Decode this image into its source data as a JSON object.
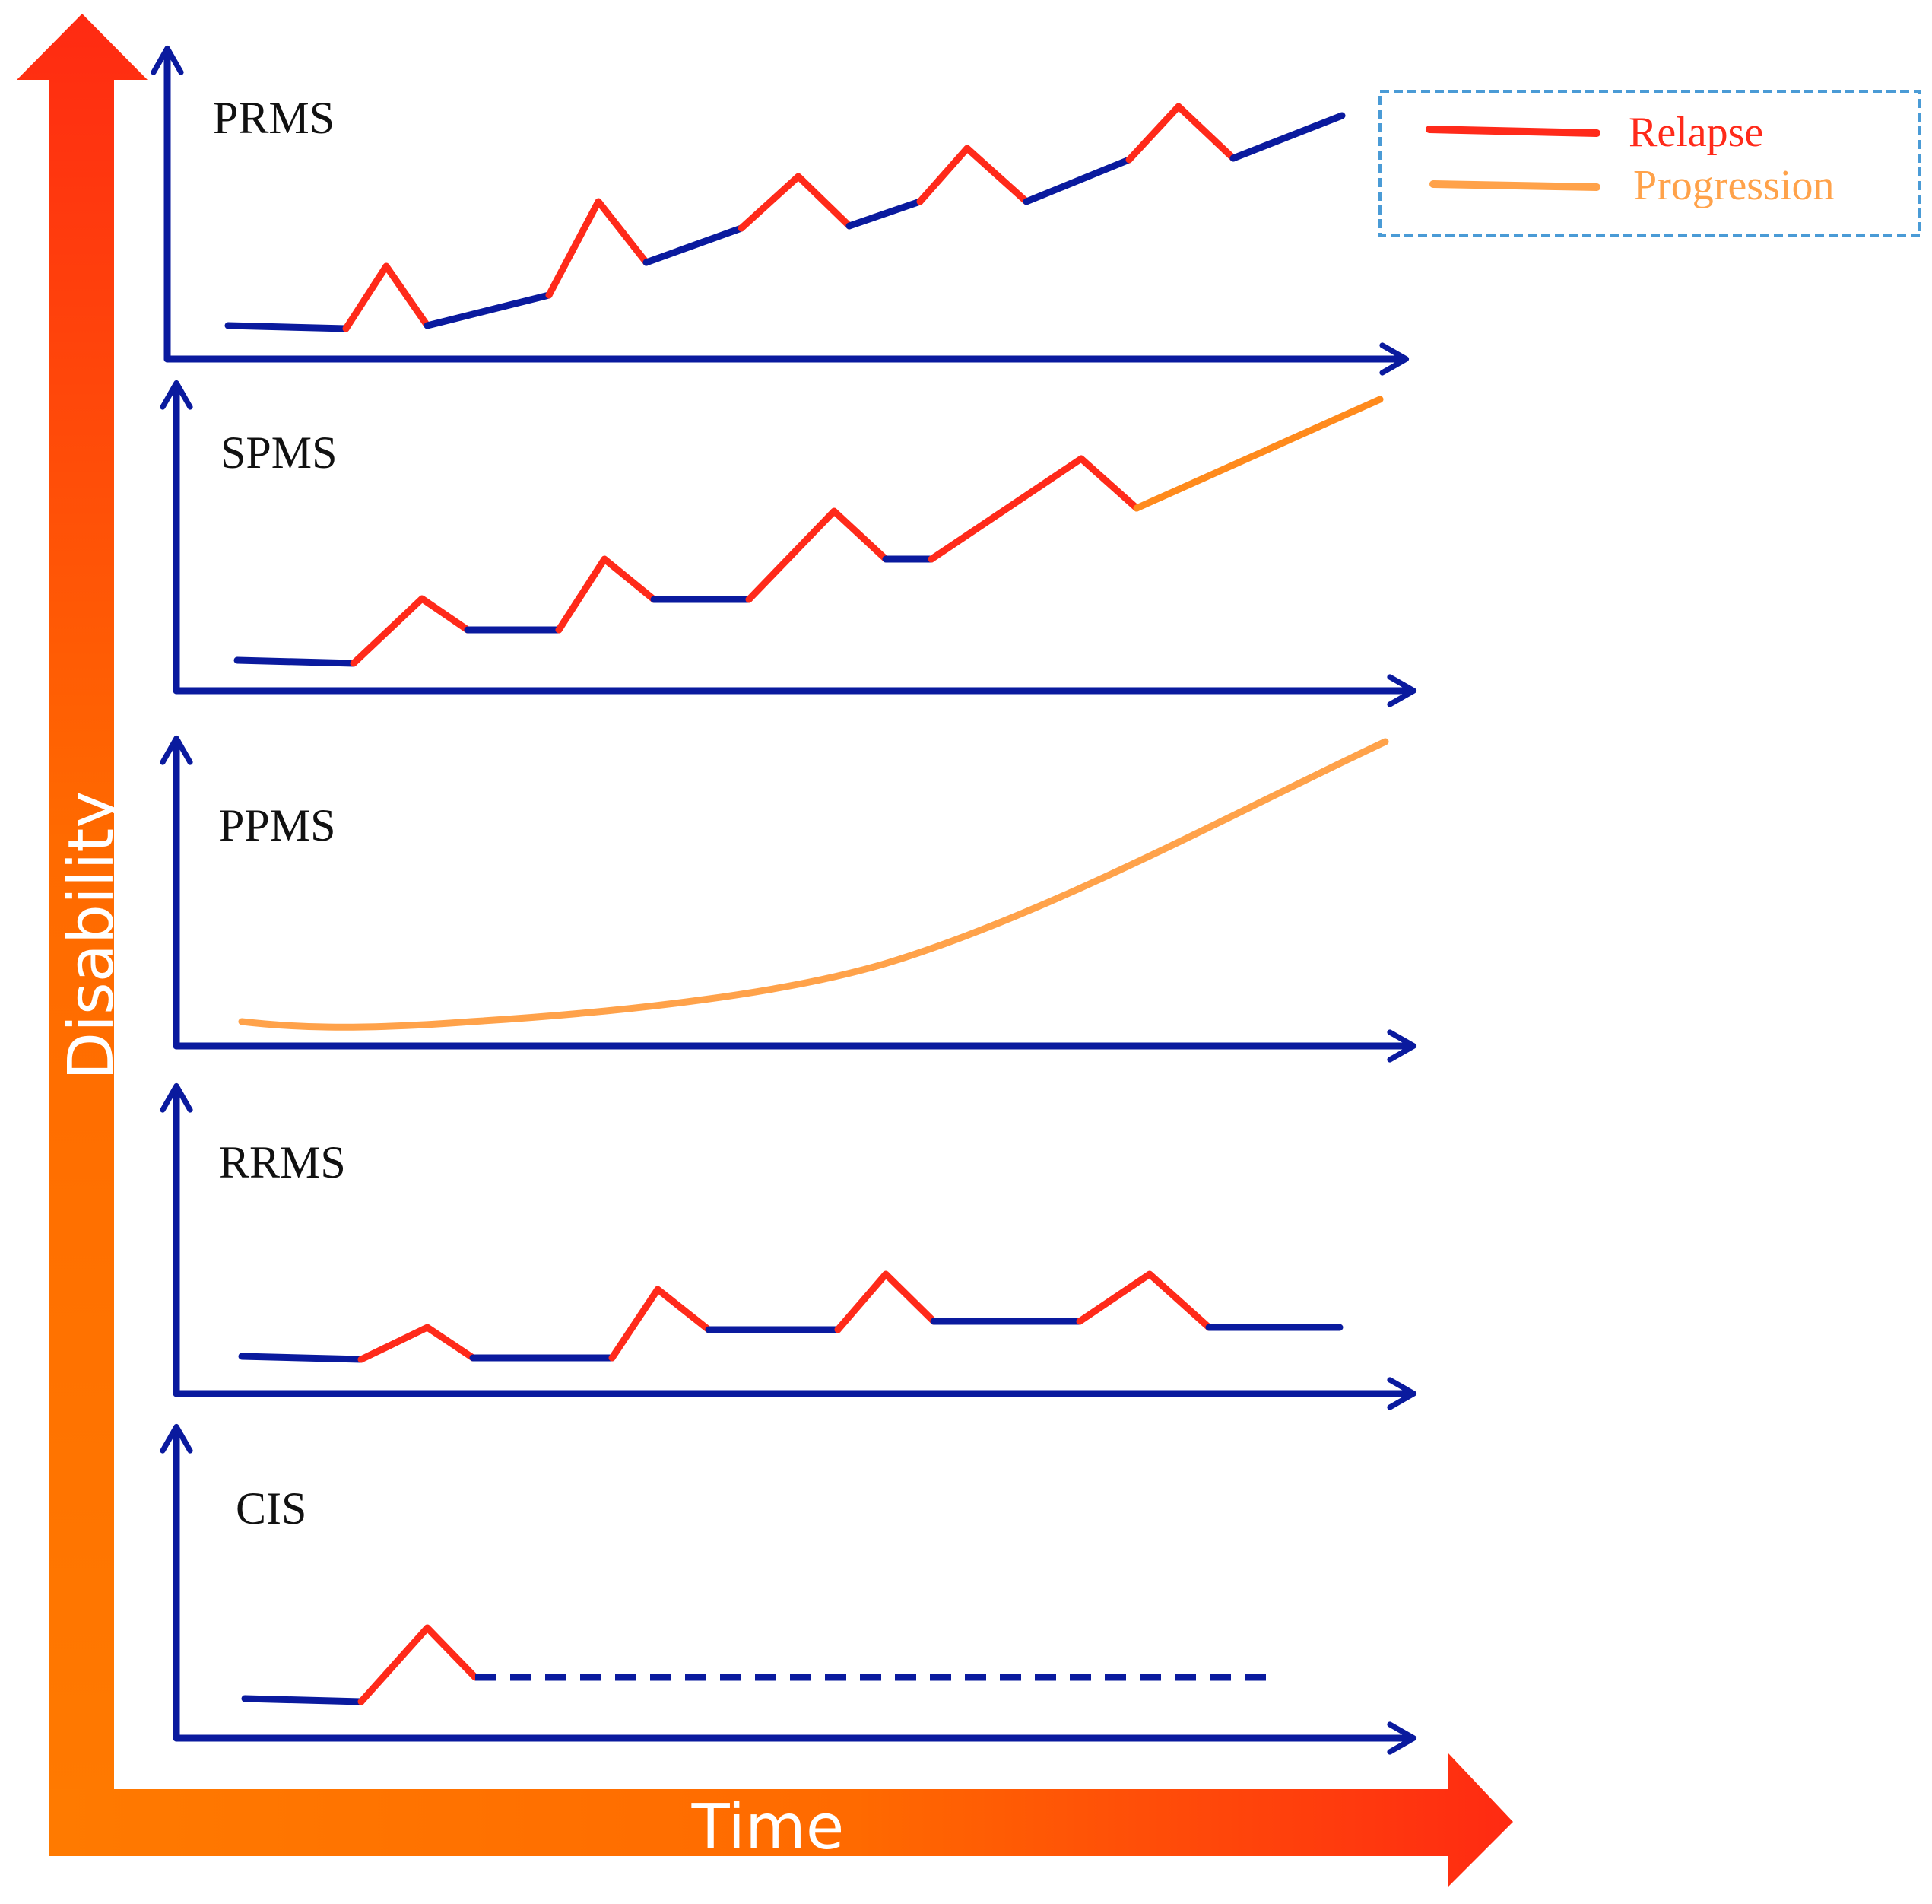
{
  "axes": {
    "y_title": "Disability",
    "x_title": "Time"
  },
  "legend": {
    "items": [
      {
        "label": "Relapse",
        "color": "#ff2a1a"
      },
      {
        "label": "Progression",
        "color": "#ffa24a"
      }
    ]
  },
  "colors": {
    "axis": "#0a1a9e",
    "stable": "#0a1a9e",
    "relapse": "#ff2a1a",
    "progression": "#ffa24a",
    "gradient_orange": "#ff7a00",
    "gradient_red": "#ff2a12"
  },
  "panels": [
    {
      "label": "PRMS"
    },
    {
      "label": "SPMS"
    },
    {
      "label": "PPMS"
    },
    {
      "label": "RRMS"
    },
    {
      "label": "CIS"
    }
  ]
}
